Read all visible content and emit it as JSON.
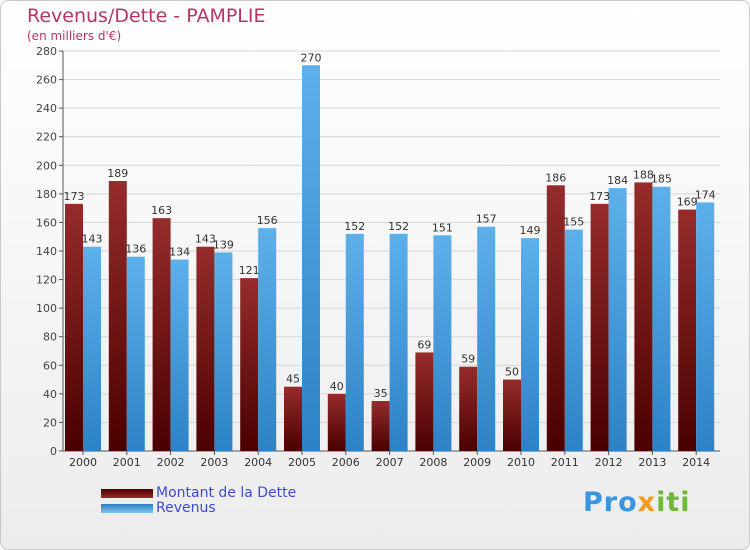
{
  "chart_data": {
    "type": "bar",
    "title": "Revenus/Dette - PAMPLIE",
    "subtitle": "(en milliers d'€)",
    "categories": [
      "2000",
      "2001",
      "2002",
      "2003",
      "2004",
      "2005",
      "2006",
      "2007",
      "2008",
      "2009",
      "2010",
      "2011",
      "2012",
      "2013",
      "2014"
    ],
    "series": [
      {
        "name": "Montant de la Dette",
        "color": "#8b1a1a",
        "values": [
          173,
          189,
          163,
          143,
          121,
          45,
          40,
          35,
          69,
          59,
          50,
          186,
          173,
          188,
          169
        ]
      },
      {
        "name": "Revenus",
        "color": "#4aa3e3",
        "values": [
          143,
          136,
          134,
          139,
          156,
          270,
          152,
          152,
          151,
          157,
          149,
          155,
          184,
          185,
          174
        ]
      }
    ],
    "ylim": [
      0,
      280
    ],
    "yticks": [
      0,
      20,
      40,
      60,
      80,
      100,
      120,
      140,
      160,
      180,
      200,
      220,
      240,
      260,
      280
    ],
    "grid": true,
    "legend_position": "bottom-left"
  },
  "legend": {
    "debt": "Montant de la Dette",
    "revenue": "Revenus"
  },
  "logo": {
    "p1": "Pro",
    "p2": "x",
    "p3": "iti"
  }
}
